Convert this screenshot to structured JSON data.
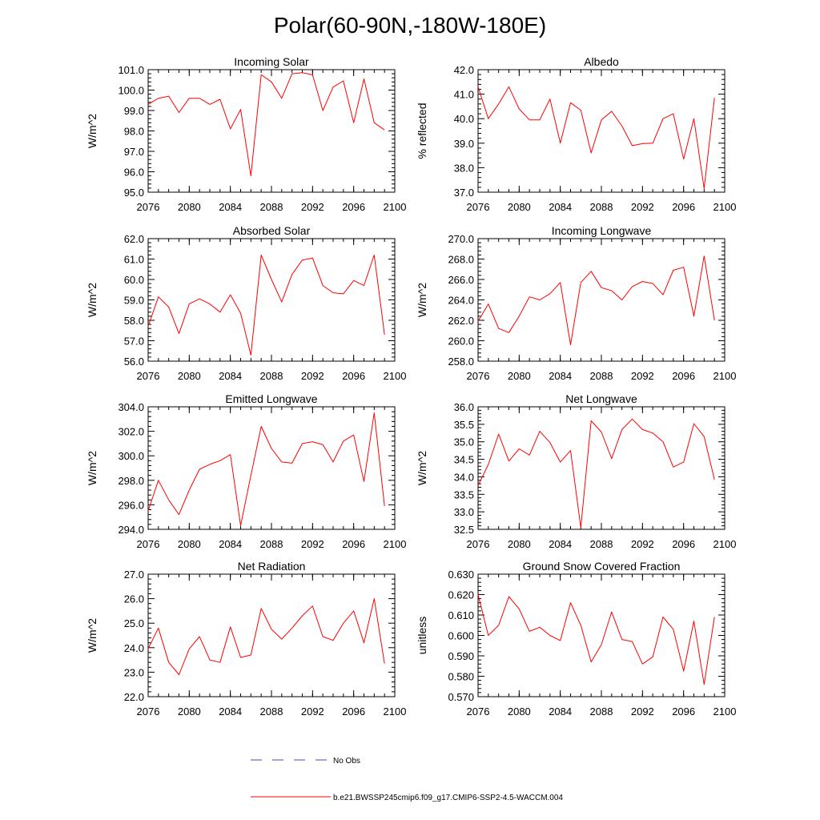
{
  "figure": {
    "title": "Polar(60-90N,-180W-180E)",
    "legend": {
      "obs_label": "No Obs",
      "model_label": "b.e21.BWSSP245cmip6.f09_g17.CMIP6-SSP2-4.5-WACCM.004",
      "obs_color": "#4a4aa8",
      "model_color": "#ff0000"
    }
  },
  "chart_data": [
    {
      "type": "line",
      "title": "Incoming Solar",
      "ylabel": "W/m^2",
      "xlabel": "",
      "xlim": [
        2076,
        2100
      ],
      "ylim": [
        95.0,
        101.0
      ],
      "xticks": [
        "2076",
        "2080",
        "2084",
        "2088",
        "2092",
        "2096",
        "2100"
      ],
      "yticks": [
        "95.0",
        "96.0",
        "97.0",
        "98.0",
        "99.0",
        "100.0",
        "101.0"
      ],
      "x": [
        2076,
        2077,
        2078,
        2079,
        2080,
        2081,
        2082,
        2083,
        2084,
        2085,
        2086,
        2087,
        2088,
        2089,
        2090,
        2091,
        2092,
        2093,
        2094,
        2095,
        2096,
        2097,
        2098,
        2099
      ],
      "series": [
        {
          "name": "b.e21.BWSSP245cmip6.f09_g17.CMIP6-SSP2-4.5-WACCM.004",
          "color": "#ff0000",
          "values": [
            99.3,
            99.6,
            99.7,
            98.9,
            99.6,
            99.6,
            99.3,
            99.55,
            98.1,
            99.05,
            95.8,
            100.75,
            100.4,
            99.6,
            100.8,
            100.85,
            100.75,
            99.0,
            100.15,
            100.45,
            98.4,
            100.55,
            98.4,
            98.05
          ]
        }
      ]
    },
    {
      "type": "line",
      "title": "Albedo",
      "ylabel": "% reflected",
      "xlabel": "",
      "xlim": [
        2076,
        2100
      ],
      "ylim": [
        37.0,
        42.0
      ],
      "xticks": [
        "2076",
        "2080",
        "2084",
        "2088",
        "2092",
        "2096",
        "2100"
      ],
      "yticks": [
        "37.0",
        "38.0",
        "39.0",
        "40.0",
        "41.0",
        "42.0"
      ],
      "x": [
        2076,
        2077,
        2078,
        2079,
        2080,
        2081,
        2082,
        2083,
        2084,
        2085,
        2086,
        2087,
        2088,
        2089,
        2090,
        2091,
        2092,
        2093,
        2094,
        2095,
        2096,
        2097,
        2098,
        2099
      ],
      "series": [
        {
          "name": "b.e21.BWSSP245cmip6.f09_g17.CMIP6-SSP2-4.5-WACCM.004",
          "color": "#ff0000",
          "values": [
            41.3,
            40.0,
            40.6,
            41.3,
            40.4,
            39.95,
            39.95,
            40.8,
            39.0,
            40.65,
            40.35,
            38.6,
            39.95,
            40.3,
            39.7,
            38.9,
            38.98,
            39.0,
            40.0,
            40.2,
            38.35,
            40.0,
            37.15,
            40.85
          ]
        }
      ]
    },
    {
      "type": "line",
      "title": "Absorbed Solar",
      "ylabel": "W/m^2",
      "xlabel": "",
      "xlim": [
        2076,
        2100
      ],
      "ylim": [
        56.0,
        62.0
      ],
      "xticks": [
        "2076",
        "2080",
        "2084",
        "2088",
        "2092",
        "2096",
        "2100"
      ],
      "yticks": [
        "56.0",
        "57.0",
        "58.0",
        "59.0",
        "60.0",
        "61.0",
        "62.0"
      ],
      "x": [
        2076,
        2077,
        2078,
        2079,
        2080,
        2081,
        2082,
        2083,
        2084,
        2085,
        2086,
        2087,
        2088,
        2089,
        2090,
        2091,
        2092,
        2093,
        2094,
        2095,
        2096,
        2097,
        2098,
        2099
      ],
      "series": [
        {
          "name": "b.e21.BWSSP245cmip6.f09_g17.CMIP6-SSP2-4.5-WACCM.004",
          "color": "#ff0000",
          "values": [
            57.7,
            59.15,
            58.65,
            57.35,
            58.8,
            59.05,
            58.8,
            58.4,
            59.25,
            58.35,
            56.3,
            61.2,
            60.0,
            58.9,
            60.25,
            60.95,
            61.05,
            59.7,
            59.35,
            59.3,
            59.95,
            59.7,
            61.2,
            57.3
          ]
        }
      ]
    },
    {
      "type": "line",
      "title": "Incoming Longwave",
      "ylabel": "W/m^2",
      "xlabel": "",
      "xlim": [
        2076,
        2100
      ],
      "ylim": [
        258.0,
        270.0
      ],
      "xticks": [
        "2076",
        "2080",
        "2084",
        "2088",
        "2092",
        "2096",
        "2100"
      ],
      "yticks": [
        "258.0",
        "260.0",
        "262.0",
        "264.0",
        "266.0",
        "268.0",
        "270.0"
      ],
      "x": [
        2076,
        2077,
        2078,
        2079,
        2080,
        2081,
        2082,
        2083,
        2084,
        2085,
        2086,
        2087,
        2088,
        2089,
        2090,
        2091,
        2092,
        2093,
        2094,
        2095,
        2096,
        2097,
        2098,
        2099
      ],
      "series": [
        {
          "name": "b.e21.BWSSP245cmip6.f09_g17.CMIP6-SSP2-4.5-WACCM.004",
          "color": "#ff0000",
          "values": [
            261.9,
            263.6,
            261.2,
            260.8,
            262.4,
            264.3,
            264.0,
            264.6,
            265.7,
            259.6,
            265.7,
            266.8,
            265.2,
            264.9,
            264.0,
            265.3,
            265.8,
            265.6,
            264.5,
            266.9,
            267.2,
            262.4,
            268.3,
            262.0
          ]
        }
      ]
    },
    {
      "type": "line",
      "title": "Emitted Longwave",
      "ylabel": "W/m^2",
      "xlabel": "",
      "xlim": [
        2076,
        2100
      ],
      "ylim": [
        294.0,
        304.0
      ],
      "xticks": [
        "2076",
        "2080",
        "2084",
        "2088",
        "2092",
        "2096",
        "2100"
      ],
      "yticks": [
        "294.0",
        "296.0",
        "298.0",
        "300.0",
        "302.0",
        "304.0"
      ],
      "x": [
        2076,
        2077,
        2078,
        2079,
        2080,
        2081,
        2082,
        2083,
        2084,
        2085,
        2086,
        2087,
        2088,
        2089,
        2090,
        2091,
        2092,
        2093,
        2094,
        2095,
        2096,
        2097,
        2098,
        2099
      ],
      "series": [
        {
          "name": "b.e21.BWSSP245cmip6.f09_g17.CMIP6-SSP2-4.5-WACCM.004",
          "color": "#ff0000",
          "values": [
            295.5,
            298.0,
            296.4,
            295.2,
            297.2,
            298.9,
            299.3,
            299.6,
            300.1,
            294.3,
            298.4,
            302.4,
            300.6,
            299.5,
            299.4,
            301.0,
            301.15,
            300.9,
            299.5,
            301.2,
            301.7,
            297.9,
            303.5,
            295.9
          ]
        }
      ]
    },
    {
      "type": "line",
      "title": "Net Longwave",
      "ylabel": "W/m^2",
      "xlabel": "",
      "xlim": [
        2076,
        2100
      ],
      "ylim": [
        32.5,
        36.0
      ],
      "xticks": [
        "2076",
        "2080",
        "2084",
        "2088",
        "2092",
        "2096",
        "2100"
      ],
      "yticks": [
        "32.5",
        "33.0",
        "33.5",
        "34.0",
        "34.5",
        "35.0",
        "35.5",
        "36.0"
      ],
      "x": [
        2076,
        2077,
        2078,
        2079,
        2080,
        2081,
        2082,
        2083,
        2084,
        2085,
        2086,
        2087,
        2088,
        2089,
        2090,
        2091,
        2092,
        2093,
        2094,
        2095,
        2096,
        2097,
        2098,
        2099
      ],
      "series": [
        {
          "name": "b.e21.BWSSP245cmip6.f09_g17.CMIP6-SSP2-4.5-WACCM.004",
          "color": "#ff0000",
          "values": [
            33.75,
            34.35,
            35.22,
            34.45,
            34.8,
            34.62,
            35.3,
            34.98,
            34.42,
            34.75,
            32.55,
            35.6,
            35.28,
            34.52,
            35.35,
            35.65,
            35.35,
            35.25,
            35.0,
            34.28,
            34.42,
            35.52,
            35.15,
            33.92
          ]
        }
      ]
    },
    {
      "type": "line",
      "title": "Net Radiation",
      "ylabel": "W/m^2",
      "xlabel": "",
      "xlim": [
        2076,
        2100
      ],
      "ylim": [
        22.0,
        27.0
      ],
      "xticks": [
        "2076",
        "2080",
        "2084",
        "2088",
        "2092",
        "2096",
        "2100"
      ],
      "yticks": [
        "22.0",
        "23.0",
        "24.0",
        "25.0",
        "26.0",
        "27.0"
      ],
      "x": [
        2076,
        2077,
        2078,
        2079,
        2080,
        2081,
        2082,
        2083,
        2084,
        2085,
        2086,
        2087,
        2088,
        2089,
        2090,
        2091,
        2092,
        2093,
        2094,
        2095,
        2096,
        2097,
        2098,
        2099
      ],
      "series": [
        {
          "name": "b.e21.BWSSP245cmip6.f09_g17.CMIP6-SSP2-4.5-WACCM.004",
          "color": "#ff0000",
          "values": [
            23.95,
            24.8,
            23.4,
            22.9,
            23.95,
            24.45,
            23.5,
            23.4,
            24.85,
            23.6,
            23.7,
            25.6,
            24.75,
            24.35,
            24.8,
            25.3,
            25.7,
            24.45,
            24.3,
            25.0,
            25.5,
            24.2,
            26.0,
            23.35
          ]
        }
      ]
    },
    {
      "type": "line",
      "title": "Ground Snow Covered Fraction",
      "ylabel": "unitless",
      "xlabel": "",
      "xlim": [
        2076,
        2100
      ],
      "ylim": [
        0.57,
        0.63
      ],
      "xticks": [
        "2076",
        "2080",
        "2084",
        "2088",
        "2092",
        "2096",
        "2100"
      ],
      "yticks": [
        "0.570",
        "0.580",
        "0.590",
        "0.600",
        "0.610",
        "0.620",
        "0.630"
      ],
      "x": [
        2076,
        2077,
        2078,
        2079,
        2080,
        2081,
        2082,
        2083,
        2084,
        2085,
        2086,
        2087,
        2088,
        2089,
        2090,
        2091,
        2092,
        2093,
        2094,
        2095,
        2096,
        2097,
        2098,
        2099
      ],
      "series": [
        {
          "name": "b.e21.BWSSP245cmip6.f09_g17.CMIP6-SSP2-4.5-WACCM.004",
          "color": "#ff0000",
          "values": [
            0.62,
            0.6,
            0.605,
            0.619,
            0.613,
            0.602,
            0.604,
            0.6,
            0.5975,
            0.616,
            0.605,
            0.587,
            0.5955,
            0.6115,
            0.598,
            0.597,
            0.586,
            0.5895,
            0.609,
            0.603,
            0.5825,
            0.607,
            0.576,
            0.609
          ]
        }
      ]
    }
  ]
}
